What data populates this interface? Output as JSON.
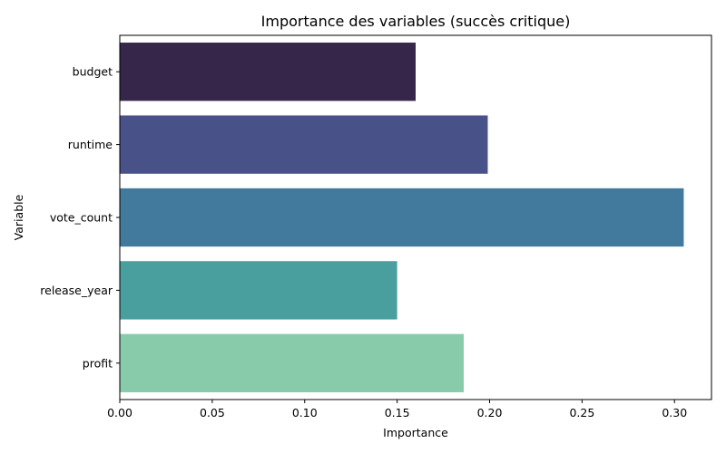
{
  "chart_data": {
    "type": "bar",
    "orientation": "horizontal",
    "title": "Importance des variables (succès critique)",
    "xlabel": "Importance",
    "ylabel": "Variable",
    "categories": [
      "budget",
      "runtime",
      "vote_count",
      "release_year",
      "profit"
    ],
    "values": [
      0.16,
      0.199,
      0.305,
      0.15,
      0.186
    ],
    "colors": [
      "#35264a",
      "#485288",
      "#417a9c",
      "#489f9e",
      "#87cbab"
    ],
    "xlim": [
      0,
      0.32
    ],
    "xticks": [
      0.0,
      0.05,
      0.1,
      0.15,
      0.2,
      0.25,
      0.3
    ],
    "xtick_labels": [
      "0.00",
      "0.05",
      "0.10",
      "0.15",
      "0.20",
      "0.25",
      "0.30"
    ],
    "grid": false,
    "legend": "none"
  }
}
